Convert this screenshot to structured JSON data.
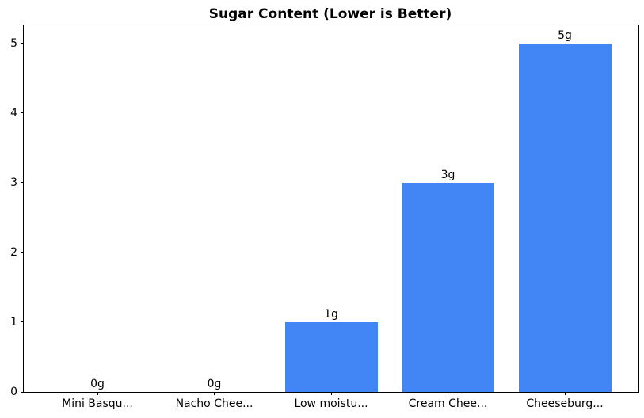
{
  "chart_data": {
    "type": "bar",
    "title": "Sugar Content (Lower is Better)",
    "categories": [
      "Mini Basqu...",
      "Nacho Chee...",
      "Low moistu...",
      "Cream Chee...",
      "Cheeseburg..."
    ],
    "values": [
      0,
      0,
      1,
      3,
      5
    ],
    "bar_labels": [
      "0g",
      "0g",
      "1g",
      "3g",
      "5g"
    ],
    "xlabel": "",
    "ylabel": "",
    "ylim": [
      0,
      5.26
    ],
    "yticks": [
      0,
      1,
      2,
      3,
      4,
      5
    ],
    "bar_color": "#4285F4",
    "axis_color": "#000000",
    "text_color": "#000000",
    "background_color": "#FFFFFF",
    "grid": false,
    "legend": false
  }
}
